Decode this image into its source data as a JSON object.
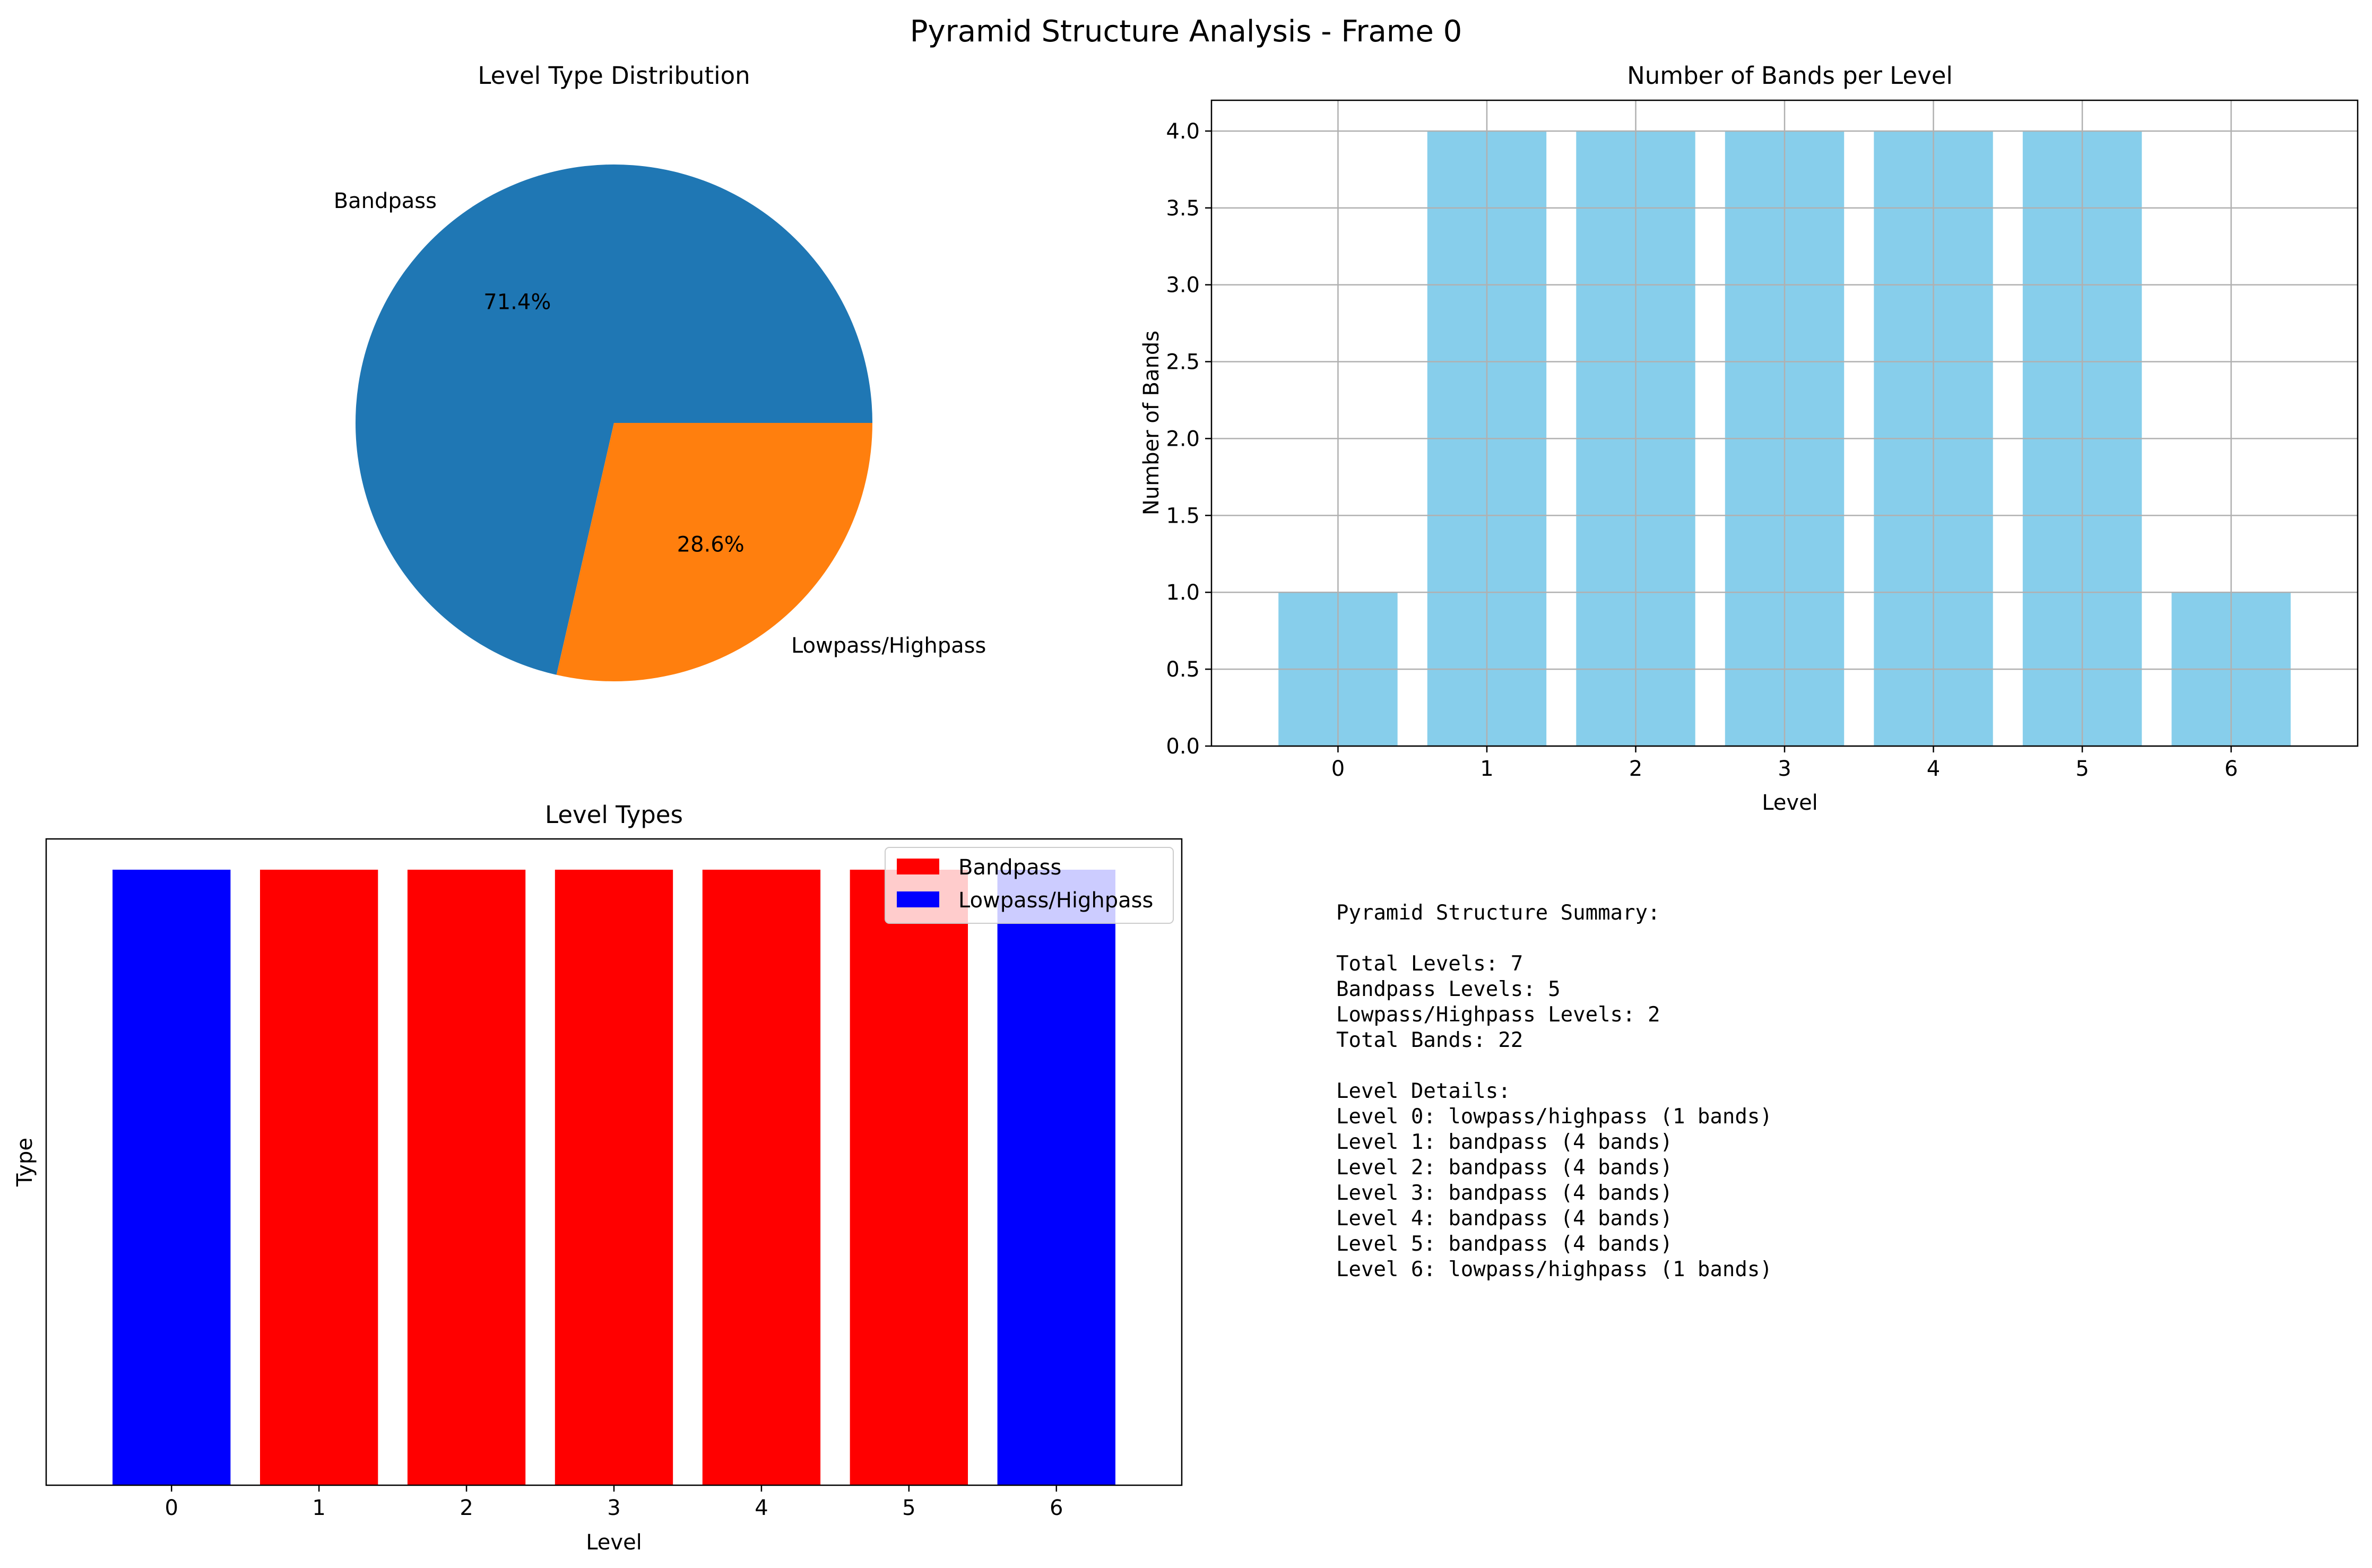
{
  "figure": {
    "title": "Pyramid Structure Analysis - Frame 0"
  },
  "chart_data": [
    {
      "type": "pie",
      "title": "Level Type Distribution",
      "labels": [
        "Bandpass",
        "Lowpass/Highpass"
      ],
      "values": [
        5,
        2
      ],
      "percent_labels": [
        "71.4%",
        "28.6%"
      ],
      "colors": [
        "#1f77b4",
        "#ff7f0e"
      ],
      "start_angle_deg": 0,
      "direction": "counterclockwise"
    },
    {
      "type": "bar",
      "title": "Number of Bands per Level",
      "xlabel": "Level",
      "ylabel": "Number of Bands",
      "categories": [
        "0",
        "1",
        "2",
        "3",
        "4",
        "5",
        "6"
      ],
      "values": [
        1,
        4,
        4,
        4,
        4,
        4,
        1
      ],
      "ylim": [
        0,
        4.2
      ],
      "yticks": [
        "0.0",
        "0.5",
        "1.0",
        "1.5",
        "2.0",
        "2.5",
        "3.0",
        "3.5",
        "4.0"
      ],
      "grid": true,
      "color": "#87ceeb"
    },
    {
      "type": "bar",
      "title": "Level Types",
      "xlabel": "Level",
      "ylabel": "Type",
      "categories": [
        "0",
        "1",
        "2",
        "3",
        "4",
        "5",
        "6"
      ],
      "values": [
        1,
        1,
        1,
        1,
        1,
        1,
        1
      ],
      "level_types": [
        "Lowpass/Highpass",
        "Bandpass",
        "Bandpass",
        "Bandpass",
        "Bandpass",
        "Bandpass",
        "Lowpass/Highpass"
      ],
      "ylim": [
        0,
        1.05
      ],
      "grid": false,
      "legend": {
        "placement": "top-right",
        "entries": [
          {
            "label": "Bandpass",
            "color": "#ff0000"
          },
          {
            "label": "Lowpass/Highpass",
            "color": "#0000ff"
          }
        ]
      }
    }
  ],
  "summary": {
    "lines": [
      "Pyramid Structure Summary:",
      "",
      "Total Levels: 7",
      "Bandpass Levels: 5",
      "Lowpass/Highpass Levels: 2",
      "Total Bands: 22",
      "",
      "Level Details:",
      "Level 0: lowpass/highpass (1 bands)",
      "Level 1: bandpass (4 bands)",
      "Level 2: bandpass (4 bands)",
      "Level 3: bandpass (4 bands)",
      "Level 4: bandpass (4 bands)",
      "Level 5: bandpass (4 bands)",
      "Level 6: lowpass/highpass (1 bands)"
    ]
  }
}
